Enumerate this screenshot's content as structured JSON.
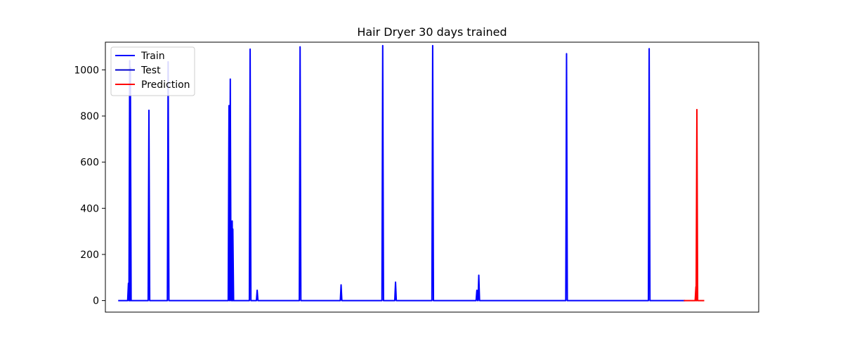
{
  "chart_data": {
    "type": "line",
    "title": "Hair Dryer 30 days trained",
    "xlabel": "",
    "ylabel": "",
    "x_range": [
      -2,
      100
    ],
    "ylim": [
      -50,
      1120
    ],
    "y_ticks": [
      0,
      200,
      400,
      600,
      800,
      1000
    ],
    "grid": false,
    "legend_position": "top-left",
    "x_tick_labels_visible": false,
    "series": [
      {
        "name": "Train",
        "color": "#0000ff",
        "baseline": 0,
        "spikes": [
          {
            "x": 1.6,
            "y": 75
          },
          {
            "x": 1.8,
            "y": 1040
          },
          {
            "x": 1.9,
            "y": 1010
          },
          {
            "x": 4.8,
            "y": 825
          },
          {
            "x": 7.8,
            "y": 1035
          },
          {
            "x": 17.3,
            "y": 845
          },
          {
            "x": 17.5,
            "y": 960
          },
          {
            "x": 17.8,
            "y": 345
          },
          {
            "x": 17.9,
            "y": 310
          },
          {
            "x": 20.6,
            "y": 1090
          },
          {
            "x": 21.7,
            "y": 45
          },
          {
            "x": 28.4,
            "y": 1100
          },
          {
            "x": 34.8,
            "y": 68
          },
          {
            "x": 41.3,
            "y": 1105
          },
          {
            "x": 43.3,
            "y": 80
          },
          {
            "x": 49.1,
            "y": 1105
          },
          {
            "x": 56.0,
            "y": 45
          },
          {
            "x": 56.3,
            "y": 110
          },
          {
            "x": 70.0,
            "y": 1070
          },
          {
            "x": 82.9,
            "y": 1092
          }
        ],
        "x_start": 0,
        "x_end": 88.5
      },
      {
        "name": "Test",
        "color": "#0000cc",
        "baseline": 0,
        "spikes": [],
        "x_start": 0,
        "x_end": 88.5
      },
      {
        "name": "Prediction",
        "color": "#ff0000",
        "baseline": 0,
        "spikes": [
          {
            "x": 90.2,
            "y": 60
          },
          {
            "x": 90.35,
            "y": 828
          }
        ],
        "x_start": 88.3,
        "x_end": 91.5
      }
    ]
  }
}
